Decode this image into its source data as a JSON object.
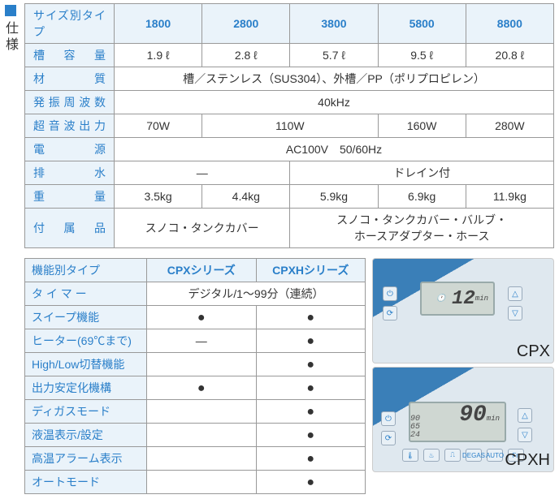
{
  "spec_square_color": "#2a7fc9",
  "spec_heading": "仕様",
  "table1": {
    "corner": "サイズ別タイプ",
    "cols": [
      "1800",
      "2800",
      "3800",
      "5800",
      "8800"
    ],
    "rows": [
      {
        "label": "槽 容 量",
        "cells": [
          "1.9 ℓ",
          "2.8 ℓ",
          "5.7 ℓ",
          "9.5 ℓ",
          "20.8 ℓ"
        ]
      },
      {
        "label": "材　　質",
        "span": 5,
        "cell": "槽／ステンレス（SUS304）、外槽／PP（ポリプロピレン）"
      },
      {
        "label": "発振周波数",
        "span": 5,
        "cell": "40kHz"
      },
      {
        "label": "超音波出力",
        "cells_span": [
          {
            "v": "70W",
            "s": 1
          },
          {
            "v": "110W",
            "s": 2
          },
          {
            "v": "160W",
            "s": 1
          },
          {
            "v": "280W",
            "s": 1
          }
        ]
      },
      {
        "label": "電　　源",
        "span": 5,
        "cell": "AC100V　50/60Hz"
      },
      {
        "label": "排　　水",
        "cells_span": [
          {
            "v": "—",
            "s": 2
          },
          {
            "v": "ドレイン付",
            "s": 3
          }
        ]
      },
      {
        "label": "重　　量",
        "cells": [
          "3.5kg",
          "4.4kg",
          "5.9kg",
          "6.9kg",
          "11.9kg"
        ]
      },
      {
        "label": "付 属 品",
        "cells_span": [
          {
            "v": "スノコ・タンクカバー",
            "s": 2
          },
          {
            "v": "スノコ・タンクカバー・バルブ・\nホースアダプター・ホース",
            "s": 3
          }
        ]
      }
    ]
  },
  "table2": {
    "corner": "機能別タイプ",
    "cols": [
      "CPXシリーズ",
      "CPXHシリーズ"
    ],
    "rows": [
      {
        "label": "タ イ マ ー",
        "span": 2,
        "cell": "デジタル/1～99分（連続）"
      },
      {
        "label": "スイープ機能",
        "cells": [
          "●",
          "●"
        ]
      },
      {
        "label": "ヒーター(69℃まで)",
        "cells": [
          "—",
          "●"
        ]
      },
      {
        "label": "High/Low切替機能",
        "cells": [
          "",
          "●"
        ]
      },
      {
        "label": "出力安定化機構",
        "cells": [
          "●",
          "●"
        ]
      },
      {
        "label": "ディガスモード",
        "cells": [
          "",
          "●"
        ]
      },
      {
        "label": "液温表示/設定",
        "cells": [
          "",
          "●"
        ]
      },
      {
        "label": "高温アラーム表示",
        "cells": [
          "",
          "●"
        ]
      },
      {
        "label": "オートモード",
        "cells": [
          "",
          "●"
        ]
      }
    ]
  },
  "panels": {
    "cpx": {
      "label": "CPX",
      "lcd_value": "12",
      "lcd_unit": "min",
      "left_icons": [
        "⏻",
        "⟳"
      ],
      "right_icons": [
        "△",
        "▽"
      ]
    },
    "cpxh": {
      "label": "CPXH",
      "lcd_main": "90",
      "lcd_unit": "min",
      "lcd_side": [
        "90",
        "65",
        "24"
      ],
      "left_icons": [
        "⏻",
        "⟳"
      ],
      "right_icons": [
        "△",
        "▽"
      ],
      "bottom_icons": [
        "🌡",
        "♨",
        "⎍",
        "DEGAS",
        "AUTO",
        "Fn"
      ]
    }
  }
}
